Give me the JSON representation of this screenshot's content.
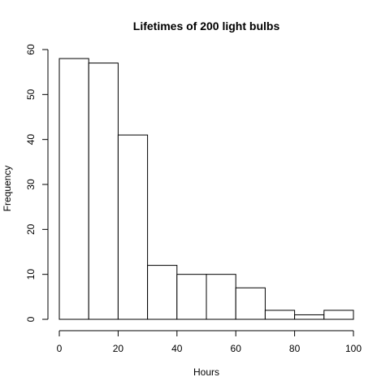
{
  "chart_data": {
    "type": "bar",
    "title": "Lifetimes of 200 light bulbs",
    "xlabel": "Hours",
    "ylabel": "Frequency",
    "bin_edges": [
      0,
      10,
      20,
      30,
      40,
      50,
      60,
      70,
      80,
      90,
      100
    ],
    "values": [
      58,
      57,
      41,
      12,
      10,
      10,
      7,
      2,
      1,
      2
    ],
    "xlim": [
      0,
      100
    ],
    "ylim": [
      0,
      60
    ],
    "x_ticks": [
      0,
      20,
      40,
      60,
      80,
      100
    ],
    "y_ticks": [
      0,
      10,
      20,
      30,
      40,
      50,
      60
    ],
    "grid": false,
    "colors": {
      "bar_fill": "#ffffff",
      "bar_stroke": "#000000",
      "background": "#ffffff"
    }
  }
}
